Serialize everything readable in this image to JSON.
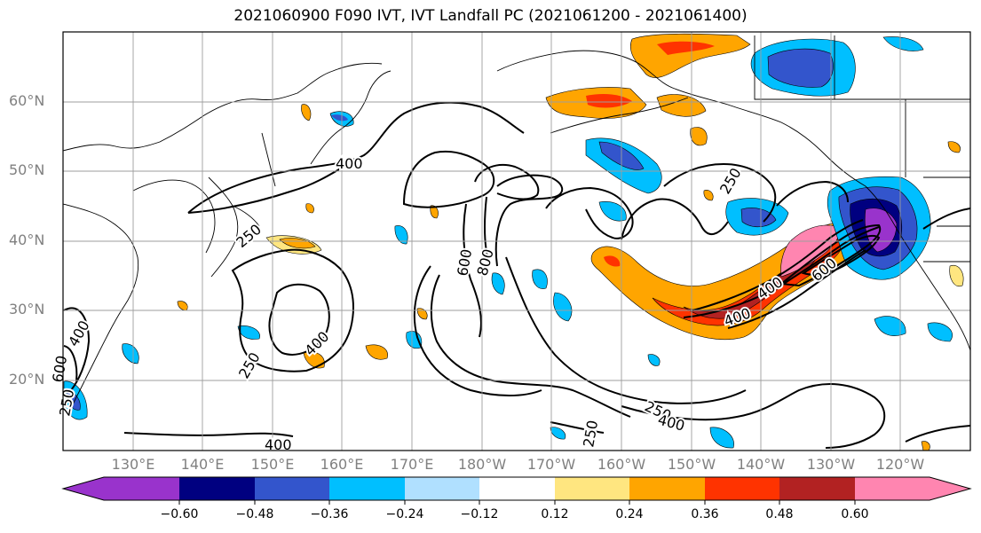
{
  "title": "2021060900 F090 IVT, IVT Landfall PC (2021061200 - 2021061400)",
  "lat_labels": [
    "60°N",
    "50°N",
    "40°N",
    "30°N",
    "20°N"
  ],
  "lon_labels": [
    "130°E",
    "140°E",
    "150°E",
    "160°E",
    "170°E",
    "180°W",
    "170°W",
    "160°W",
    "150°W",
    "140°W",
    "130°W",
    "120°W"
  ],
  "contour_labels": [
    "400",
    "250",
    "400",
    "250",
    "400",
    "600",
    "800",
    "250",
    "400",
    "600",
    "250",
    "250",
    "400",
    "250",
    "400",
    "600",
    "400"
  ],
  "colorbar": {
    "ticks": [
      "−0.60",
      "−0.48",
      "−0.36",
      "−0.24",
      "−0.12",
      "0.12",
      "0.24",
      "0.36",
      "0.48",
      "0.60"
    ],
    "colors": [
      "#9933cc",
      "#000080",
      "#3355cc",
      "#00bfff",
      "#b0e0ff",
      "#ffffff",
      "#ffe680",
      "#ffa500",
      "#ff3300",
      "#b22222",
      "#ff85b0"
    ]
  },
  "field_colors": {
    "strong_pos": "#b22222",
    "pos": "#ff3300",
    "mid_pos": "#ffa500",
    "weak_pos": "#ffe680",
    "weak_neg": "#b0e0ff",
    "neg": "#00bfff",
    "mid_neg": "#3355cc",
    "strong_neg": "#000080",
    "extreme_neg": "#9933cc",
    "extreme_pos": "#ff85b0"
  }
}
